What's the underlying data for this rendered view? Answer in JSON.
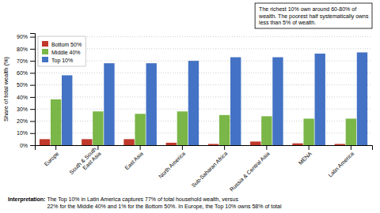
{
  "chart_data": {
    "type": "bar",
    "categories": [
      "Europe",
      "South & South\nEast Asia",
      "East Asia",
      "North America",
      "Sub-Saharan Africa",
      "Russia & Central Asia",
      "MENA",
      "Latin America"
    ],
    "series": [
      {
        "name": "Bottom 50%",
        "color": "#c0392b",
        "values": [
          5,
          5,
          5,
          2,
          1,
          3,
          1.5,
          1
        ]
      },
      {
        "name": "Middle 40%",
        "color": "#7ab648",
        "values": [
          38,
          28,
          26,
          28,
          25,
          24,
          22,
          22
        ]
      },
      {
        "name": "Top 10%",
        "color": "#4472c4",
        "values": [
          58,
          68,
          68,
          70,
          73,
          73,
          76,
          77
        ]
      }
    ],
    "y_label": "Share of total wealth (%)",
    "ylim": [
      0,
      93
    ],
    "yticks": [
      {
        "value": 0,
        "label": "0%"
      },
      {
        "value": 10,
        "label": "10%"
      },
      {
        "value": 20,
        "label": "20%"
      },
      {
        "value": 30,
        "label": "30%"
      },
      {
        "value": 40,
        "label": "40%"
      },
      {
        "value": 50,
        "label": "50%"
      },
      {
        "value": 60,
        "label": "60%"
      },
      {
        "value": 70,
        "label": "70%"
      },
      {
        "value": 80,
        "label": "80%"
      },
      {
        "value": 90,
        "label": "90%"
      }
    ],
    "grid": true,
    "legend": "upper left",
    "annotation": "The richest 10% own around 60-80% of\nwealth. The poorest half systematically owns\nless than 5% of wealth.",
    "footnote": [
      "Interpretation: ",
      " The Top 10% in Latin America captures 77% of total household wealth, versus\n22% for the Middle 40% and 1% for the Bottom 50%. In Europe, the Top 10% owns 58% of total"
    ]
  }
}
